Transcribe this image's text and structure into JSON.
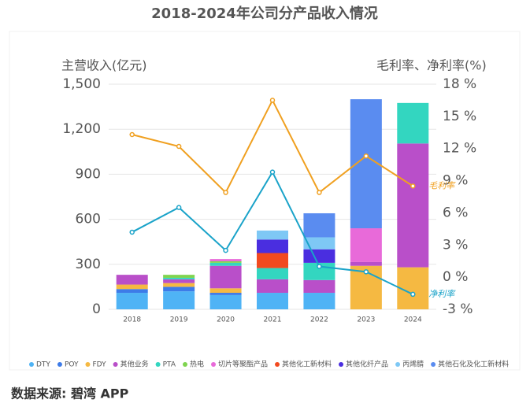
{
  "chart_data": {
    "type": "bar",
    "title": "2018-2024年公司分产品收入情况",
    "y_label": "主营收入(亿元)",
    "y2_label": "毛利率、净利率(%)",
    "source": "数据来源: 碧湾 APP",
    "categories": [
      "2018",
      "2019",
      "2020",
      "2021",
      "2022",
      "2023",
      "2024"
    ],
    "ylim": [
      0,
      1500
    ],
    "yticks": [
      0,
      300,
      600,
      900,
      {
        "value": 1200,
        "label": "1,200"
      },
      {
        "value": 1500,
        "label": "1,500"
      }
    ],
    "y2lim": [
      -3,
      18
    ],
    "y2ticks": [
      {
        "value": -3,
        "label": "-3 %"
      },
      {
        "value": 0,
        "label": "0 %"
      },
      {
        "value": 3,
        "label": "3 %"
      },
      {
        "value": 6,
        "label": "6 %"
      },
      {
        "value": 9,
        "label": "9 %"
      },
      {
        "value": 12,
        "label": "12 %"
      },
      {
        "value": 15,
        "label": "15 %"
      },
      {
        "value": 18,
        "label": "18 %"
      }
    ],
    "grid": true,
    "series": [
      {
        "name": "DTY",
        "color": "#4fb3f5",
        "values": [
          110,
          120,
          95,
          110,
          110,
          0,
          0
        ]
      },
      {
        "name": "POY",
        "color": "#3d7be8",
        "values": [
          25,
          30,
          15,
          0,
          0,
          0,
          0
        ]
      },
      {
        "name": "FDY",
        "color": "#f5b942",
        "values": [
          30,
          25,
          30,
          0,
          0,
          290,
          280
        ]
      },
      {
        "name": "其他业务",
        "color": "#b94fc9",
        "values": [
          65,
          25,
          150,
          90,
          85,
          25,
          825
        ]
      },
      {
        "name": "PTA",
        "color": "#33d6c0",
        "values": [
          0,
          10,
          20,
          75,
          115,
          0,
          270
        ]
      },
      {
        "name": "热电",
        "color": "#7fd44f",
        "values": [
          0,
          20,
          10,
          0,
          0,
          0,
          0
        ]
      },
      {
        "name": "切片等聚酯产品",
        "color": "#e86ad9",
        "values": [
          0,
          0,
          15,
          0,
          0,
          225,
          0
        ]
      },
      {
        "name": "其他化工新材料",
        "color": "#f24a1f",
        "values": [
          0,
          0,
          0,
          100,
          0,
          0,
          0
        ]
      },
      {
        "name": "其他化纤产品",
        "color": "#4a2ee0",
        "values": [
          0,
          0,
          0,
          90,
          90,
          0,
          0
        ]
      },
      {
        "name": "丙烯腈",
        "color": "#7ec8f5",
        "values": [
          0,
          0,
          0,
          60,
          80,
          0,
          0
        ]
      },
      {
        "name": "其他石化及化工新材料",
        "color": "#5a8cf0",
        "values": [
          0,
          0,
          0,
          0,
          160,
          860,
          0
        ]
      },
      {
        "name": "毛利率",
        "type": "line",
        "axis": "y2",
        "color": "#f0a020",
        "values": [
          13.3,
          12.2,
          7.9,
          16.5,
          7.9,
          11.3,
          8.5
        ]
      },
      {
        "name": "净利率",
        "type": "line",
        "axis": "y2",
        "color": "#1aa3c9",
        "values": [
          4.2,
          6.5,
          2.5,
          9.8,
          1.0,
          0.5,
          -1.6
        ]
      }
    ]
  }
}
